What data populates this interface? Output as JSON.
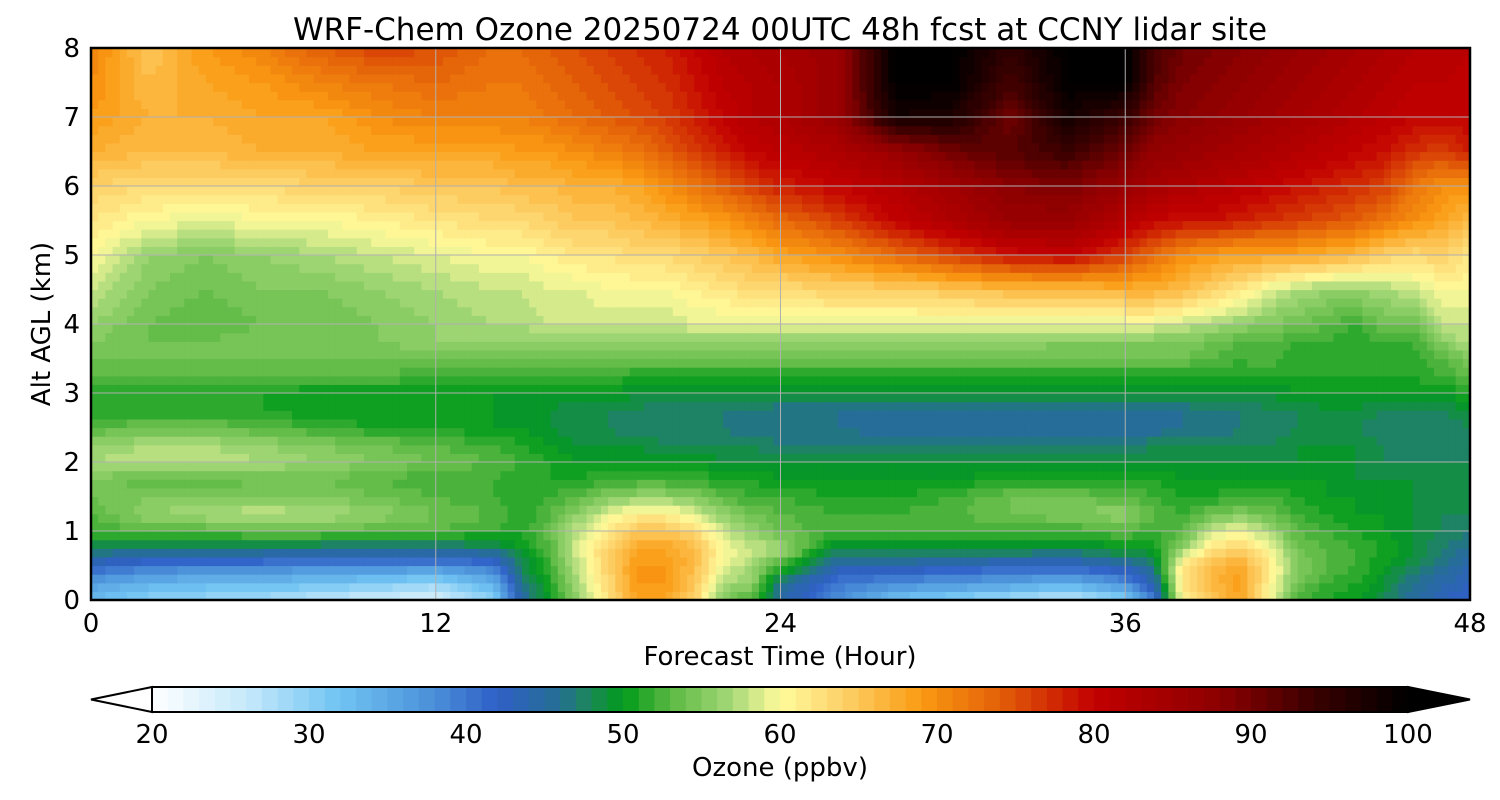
{
  "chart_data": {
    "type": "heatmap",
    "title": "WRF-Chem Ozone  20250724 00UTC 48h fcst at CCNY lidar site",
    "xlabel": "Forecast Time (Hour)",
    "ylabel": "Alt AGL (km)",
    "xlim": [
      0,
      48
    ],
    "ylim": [
      0,
      8
    ],
    "x_ticks": [
      "0",
      "12",
      "24",
      "36",
      "48"
    ],
    "y_ticks": [
      "0",
      "1",
      "2",
      "3",
      "4",
      "5",
      "6",
      "7",
      "8"
    ],
    "grid": true,
    "x": [
      0,
      2,
      4,
      6,
      8,
      10,
      12,
      14,
      15,
      16,
      17,
      18,
      19,
      20,
      21,
      22,
      23,
      24,
      26,
      28,
      30,
      32,
      34,
      36,
      37,
      38,
      39,
      40,
      41,
      42,
      43,
      44,
      45,
      46,
      47,
      48
    ],
    "y": [
      0,
      0.25,
      0.5,
      0.75,
      1,
      1.25,
      1.5,
      1.75,
      2,
      2.25,
      2.5,
      2.75,
      3,
      3.25,
      3.5,
      3.75,
      4,
      4.5,
      5,
      5.5,
      6,
      6.5,
      7,
      7.5,
      8
    ],
    "z_units": "ppbv",
    "z": [
      [
        33,
        30,
        29,
        28,
        26,
        25,
        24,
        30,
        45,
        50,
        56,
        62,
        68,
        68,
        64,
        55,
        52,
        45,
        38,
        32,
        30,
        28,
        26,
        30,
        40,
        60,
        65,
        68,
        60,
        52,
        51,
        50,
        48,
        45,
        43,
        42
      ],
      [
        36,
        34,
        33,
        33,
        32,
        31,
        29,
        34,
        46,
        51,
        57,
        63,
        69,
        69,
        65,
        57,
        56,
        46,
        40,
        38,
        37,
        36,
        34,
        38,
        44,
        62,
        66,
        69,
        61,
        54,
        52,
        51,
        49,
        46,
        44,
        43
      ],
      [
        42,
        40,
        39,
        39,
        38,
        38,
        38,
        40,
        48,
        52,
        58,
        64,
        69,
        69,
        66,
        59,
        57,
        52,
        44,
        44,
        43,
        42,
        42,
        44,
        47,
        62,
        66,
        68,
        62,
        55,
        53,
        52,
        50,
        48,
        46,
        44
      ],
      [
        48,
        47,
        47,
        47,
        46,
        46,
        46,
        47,
        50,
        53,
        59,
        64,
        68,
        68,
        66,
        60,
        58,
        57,
        48,
        49,
        49,
        49,
        48,
        50,
        50,
        56,
        62,
        64,
        60,
        54,
        53,
        52,
        51,
        49,
        47,
        46
      ],
      [
        52,
        53,
        53,
        54,
        54,
        53,
        53,
        52,
        51,
        54,
        58,
        62,
        65,
        65,
        63,
        58,
        56,
        54,
        52,
        52,
        52,
        52,
        52,
        53,
        52,
        53,
        58,
        60,
        57,
        53,
        52,
        51,
        50,
        49,
        48,
        47
      ],
      [
        53,
        56,
        57,
        58,
        57,
        56,
        54,
        53,
        51,
        53,
        56,
        59,
        61,
        61,
        59,
        56,
        54,
        53,
        52,
        52,
        53,
        54,
        55,
        56,
        53,
        52,
        54,
        55,
        54,
        52,
        51,
        50,
        50,
        49,
        48,
        48
      ],
      [
        54,
        55,
        55,
        55,
        55,
        54,
        53,
        52,
        51,
        52,
        53,
        55,
        56,
        56,
        55,
        53,
        52,
        52,
        51,
        51,
        52,
        54,
        54,
        53,
        52,
        51,
        51,
        52,
        52,
        51,
        50,
        50,
        49,
        49,
        48,
        48
      ],
      [
        55,
        53,
        53,
        54,
        54,
        53,
        52,
        52,
        51,
        51,
        51,
        52,
        52,
        52,
        52,
        51,
        51,
        50,
        50,
        50,
        50,
        51,
        51,
        51,
        51,
        50,
        50,
        50,
        50,
        50,
        50,
        49,
        49,
        49,
        48,
        48
      ],
      [
        57,
        58,
        58,
        57,
        56,
        55,
        54,
        53,
        52,
        51,
        50,
        50,
        50,
        50,
        50,
        49,
        49,
        49,
        49,
        49,
        49,
        49,
        49,
        49,
        49,
        49,
        49,
        49,
        49,
        49,
        49,
        49,
        48,
        48,
        48,
        48
      ],
      [
        56,
        57,
        57,
        56,
        55,
        54,
        53,
        52,
        51,
        50,
        49,
        49,
        49,
        48,
        48,
        48,
        48,
        47,
        47,
        47,
        47,
        47,
        47,
        47,
        48,
        48,
        48,
        48,
        48,
        49,
        49,
        49,
        48,
        47,
        47,
        47
      ],
      [
        53,
        54,
        54,
        53,
        52,
        51,
        51,
        50,
        50,
        49,
        48,
        48,
        47,
        47,
        47,
        47,
        46,
        46,
        46,
        45,
        45,
        45,
        45,
        45,
        45,
        46,
        46,
        47,
        47,
        48,
        48,
        48,
        47,
        47,
        47,
        48
      ],
      [
        51,
        51,
        51,
        51,
        50,
        50,
        50,
        50,
        49,
        49,
        48,
        48,
        48,
        47,
        47,
        47,
        47,
        46,
        46,
        46,
        46,
        46,
        46,
        46,
        46,
        46,
        47,
        47,
        48,
        48,
        49,
        49,
        48,
        48,
        48,
        49
      ],
      [
        51,
        51,
        51,
        51,
        50,
        50,
        50,
        50,
        50,
        50,
        50,
        50,
        49,
        49,
        49,
        49,
        49,
        49,
        49,
        49,
        49,
        49,
        49,
        49,
        49,
        49,
        49,
        49,
        49,
        50,
        50,
        50,
        50,
        50,
        50,
        51
      ],
      [
        53,
        53,
        53,
        53,
        53,
        53,
        52,
        52,
        52,
        52,
        52,
        52,
        51,
        51,
        51,
        51,
        51,
        51,
        51,
        51,
        51,
        51,
        51,
        51,
        51,
        51,
        51,
        51,
        51,
        51,
        51,
        51,
        51,
        51,
        52,
        53
      ],
      [
        54,
        54,
        54,
        54,
        54,
        54,
        54,
        54,
        54,
        54,
        54,
        54,
        54,
        54,
        54,
        54,
        54,
        54,
        54,
        54,
        54,
        54,
        54,
        54,
        54,
        54,
        53,
        52,
        53,
        51,
        52,
        51,
        52,
        51,
        53,
        55
      ],
      [
        55,
        54,
        54,
        55,
        55,
        55,
        56,
        56,
        56,
        56,
        56,
        56,
        56,
        56,
        56,
        56,
        56,
        56,
        56,
        56,
        56,
        56,
        55,
        55,
        55,
        55,
        54,
        53,
        53,
        52,
        52,
        51,
        52,
        52,
        55,
        58
      ],
      [
        56,
        54,
        53,
        54,
        54,
        55,
        56,
        57,
        57,
        58,
        58,
        58,
        58,
        58,
        59,
        59,
        59,
        59,
        59,
        59,
        59,
        59,
        59,
        59,
        59,
        58,
        57,
        56,
        55,
        54,
        53,
        52,
        54,
        54,
        58,
        58
      ],
      [
        58,
        55,
        54,
        55,
        55,
        56,
        57,
        58,
        58,
        59,
        59,
        60,
        60,
        60,
        61,
        62,
        63,
        63,
        64,
        64,
        65,
        66,
        66,
        67,
        67,
        66,
        64,
        62,
        59,
        57,
        56,
        56,
        57,
        58,
        60,
        60
      ],
      [
        60,
        56,
        55,
        56,
        57,
        58,
        59,
        60,
        60,
        61,
        62,
        62,
        63,
        63,
        64,
        65,
        66,
        68,
        70,
        73,
        76,
        79,
        80,
        76,
        73,
        70,
        69,
        68,
        68,
        68,
        67,
        66,
        64,
        63,
        64,
        62
      ],
      [
        62,
        60,
        59,
        60,
        60,
        61,
        62,
        63,
        63,
        64,
        65,
        65,
        66,
        67,
        68,
        69,
        71,
        73,
        76,
        80,
        83,
        86,
        86,
        82,
        80,
        79,
        79,
        78,
        77,
        76,
        75,
        74,
        72,
        70,
        68,
        66
      ],
      [
        64,
        63,
        63,
        63,
        64,
        64,
        65,
        65,
        66,
        66,
        67,
        67,
        68,
        70,
        72,
        74,
        76,
        78,
        80,
        82,
        85,
        88,
        89,
        86,
        84,
        83,
        82,
        81,
        80,
        79,
        78,
        77,
        76,
        72,
        70,
        70
      ],
      [
        67,
        66,
        66,
        67,
        67,
        68,
        68,
        68,
        69,
        69,
        70,
        71,
        72,
        74,
        76,
        78,
        80,
        81,
        83,
        86,
        90,
        92,
        94,
        90,
        87,
        86,
        85,
        84,
        83,
        82,
        81,
        80,
        79,
        77,
        76,
        78
      ],
      [
        69,
        67,
        67,
        68,
        68,
        70,
        71,
        71,
        71,
        72,
        73,
        74,
        75,
        76,
        78,
        80,
        82,
        83,
        86,
        98,
        97,
        90,
        98,
        94,
        90,
        88,
        87,
        86,
        85,
        84,
        83,
        82,
        81,
        80,
        80,
        80
      ],
      [
        70,
        66,
        68,
        69,
        71,
        72,
        73,
        72,
        72,
        73,
        74,
        75,
        76,
        77,
        79,
        81,
        82,
        83,
        86,
        100,
        100,
        93,
        100,
        100,
        92,
        89,
        88,
        87,
        86,
        85,
        84,
        83,
        82,
        81,
        81,
        80
      ],
      [
        71,
        65,
        69,
        71,
        74,
        76,
        75,
        73,
        73,
        74,
        75,
        76,
        77,
        78,
        80,
        82,
        83,
        84,
        86,
        100,
        100,
        95,
        100,
        100,
        93,
        90,
        89,
        88,
        87,
        86,
        85,
        84,
        83,
        82,
        82,
        81
      ]
    ],
    "colorbar": {
      "label": "Ozone  (ppbv)",
      "min": 20,
      "max": 100,
      "step": 1,
      "ticks": [
        "20",
        "30",
        "40",
        "50",
        "60",
        "70",
        "80",
        "90",
        "100"
      ],
      "extend": "both",
      "stops": [
        [
          20,
          "#ffffff"
        ],
        [
          26,
          "#c6e9fb"
        ],
        [
          32,
          "#6fc3f2"
        ],
        [
          38,
          "#4a8fd8"
        ],
        [
          42,
          "#2f5fc7"
        ],
        [
          46,
          "#256f92"
        ],
        [
          48,
          "#1a8a55"
        ],
        [
          50,
          "#009a1a"
        ],
        [
          53,
          "#5ab842"
        ],
        [
          57,
          "#a8d97a"
        ],
        [
          60,
          "#fffb9c"
        ],
        [
          64,
          "#fdd169"
        ],
        [
          69,
          "#fa9a12"
        ],
        [
          74,
          "#e35f08"
        ],
        [
          80,
          "#c20000"
        ],
        [
          88,
          "#8c0000"
        ],
        [
          94,
          "#3a0000"
        ],
        [
          100,
          "#000000"
        ]
      ]
    }
  }
}
